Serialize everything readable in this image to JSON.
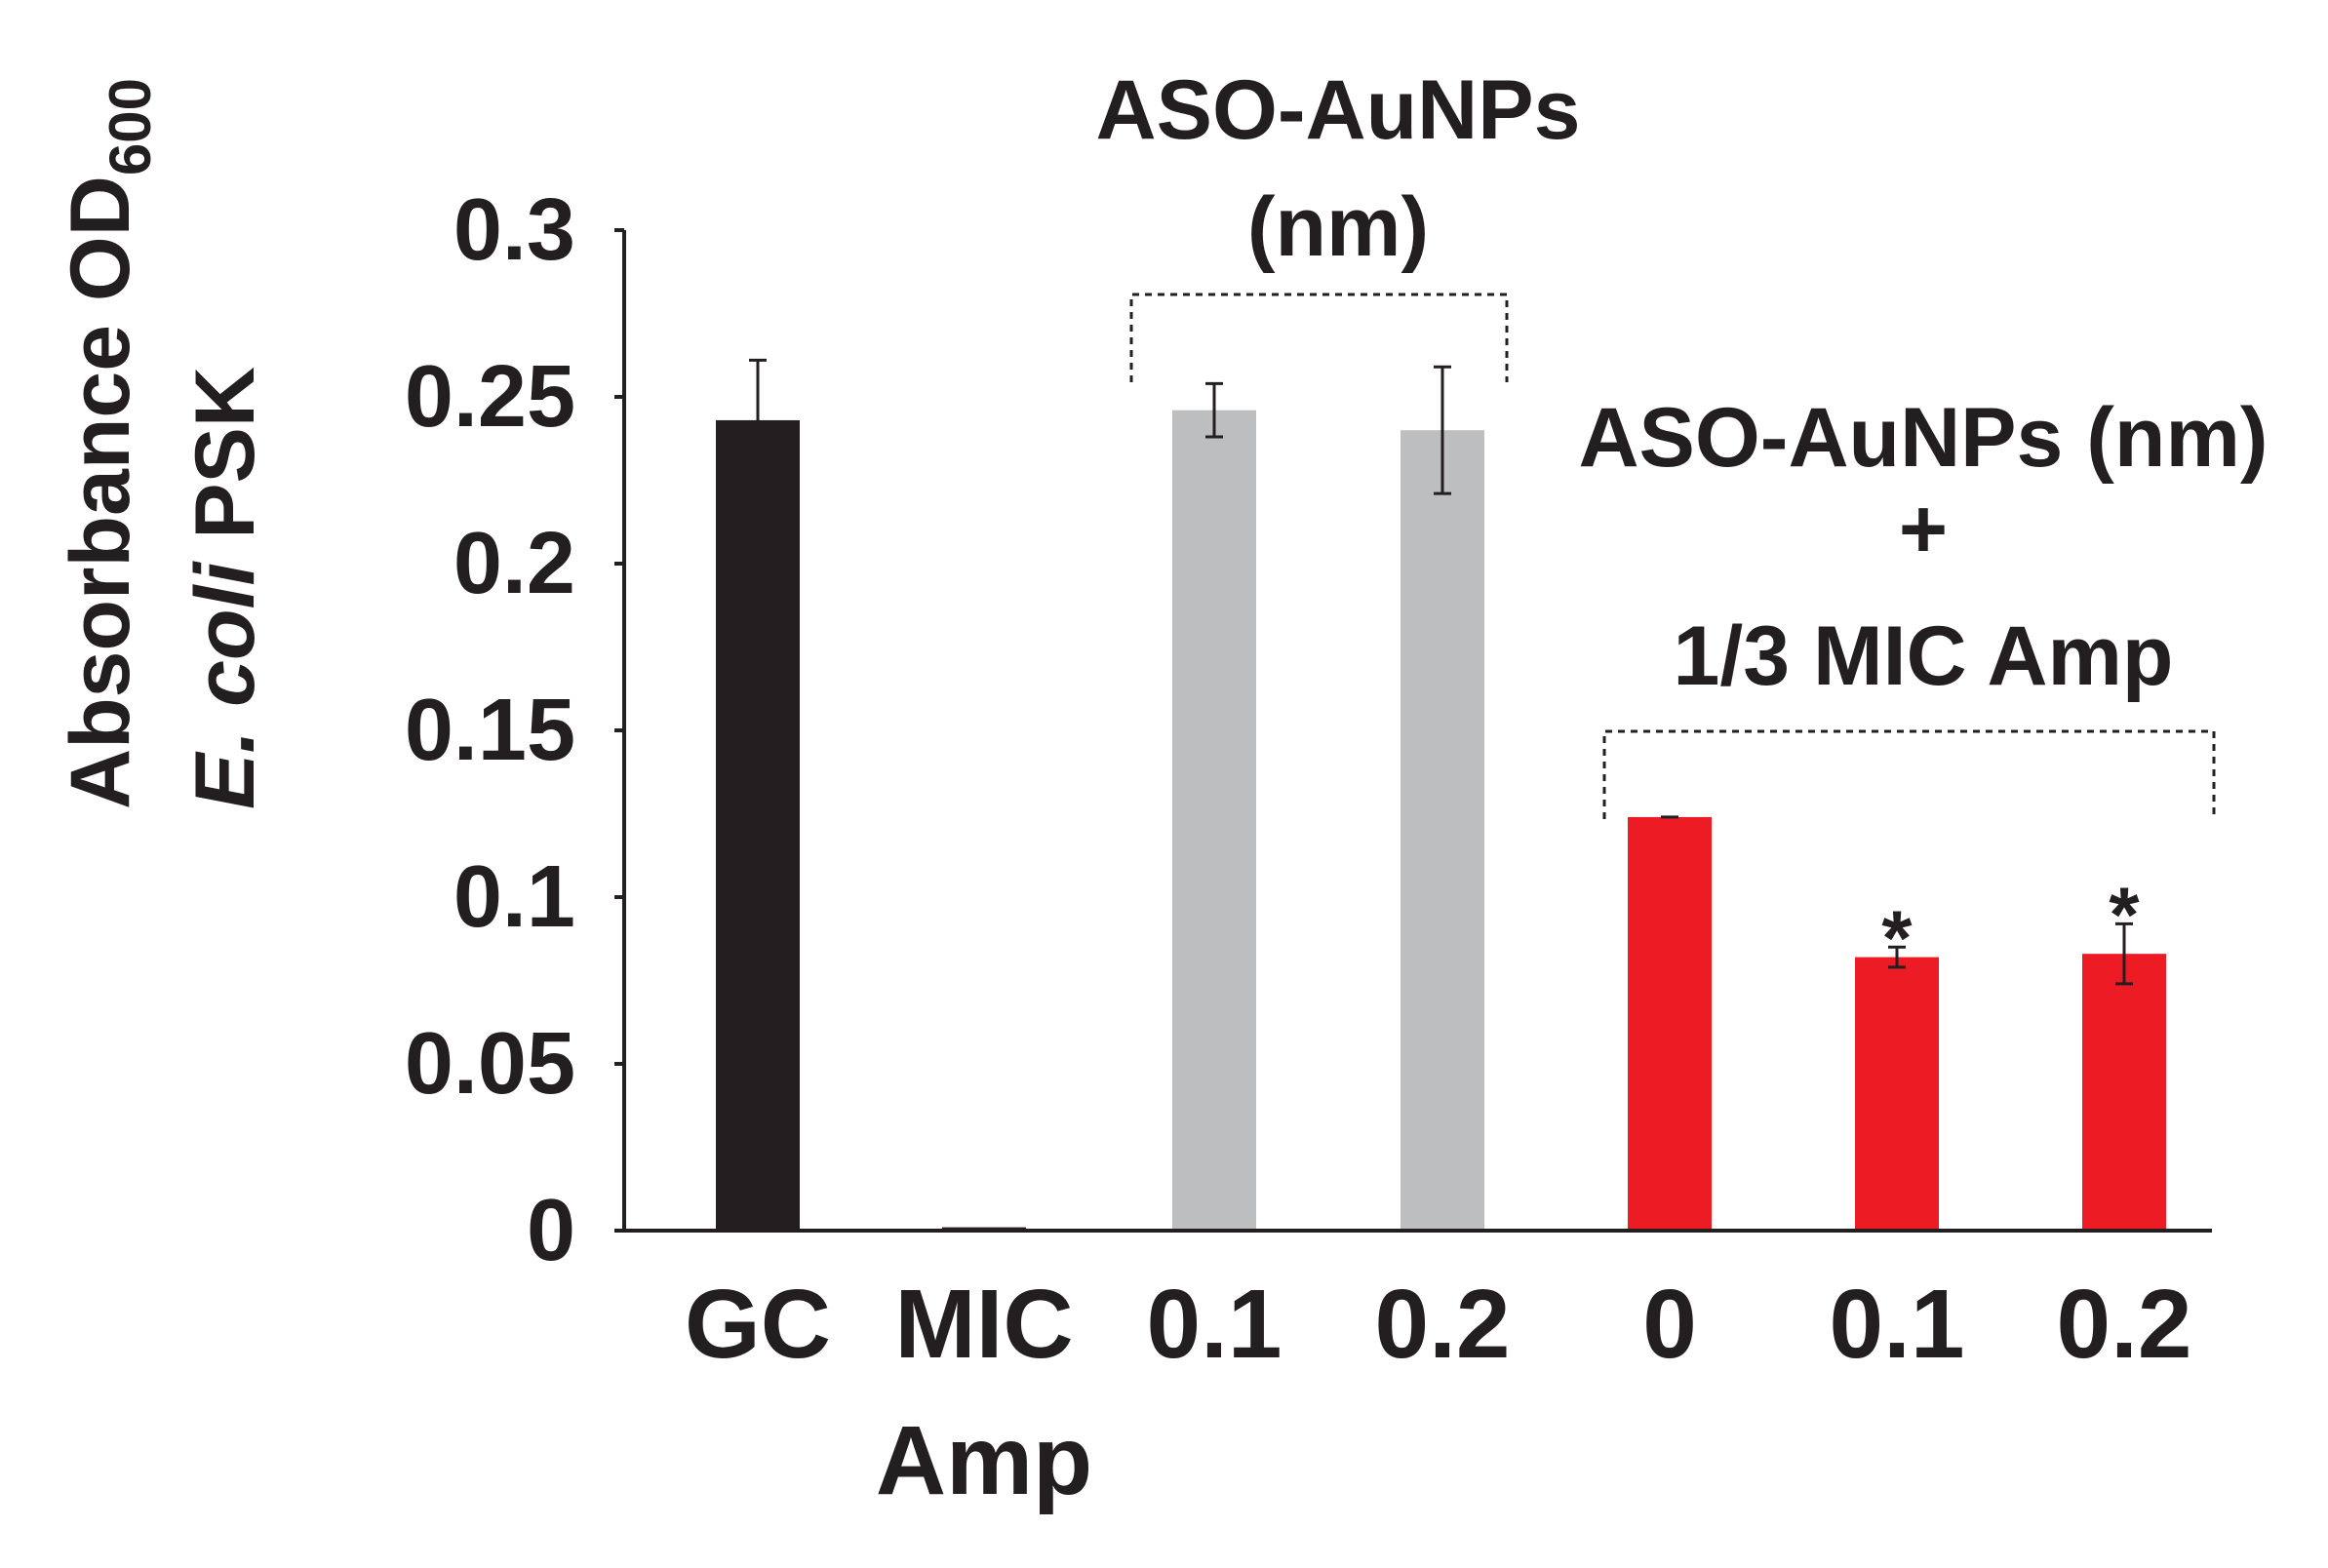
{
  "chart_data": {
    "type": "bar",
    "categories": [
      "GC",
      "MIC",
      "0.1",
      "0.2",
      "0",
      "0.1",
      "0.2"
    ],
    "category_sublabels": [
      "",
      "Amp",
      "",
      "",
      "",
      "",
      ""
    ],
    "values": [
      0.243,
      0.001,
      0.246,
      0.24,
      0.124,
      0.082,
      0.083
    ],
    "errors": [
      0.018,
      0.0,
      0.008,
      0.019,
      0.0,
      0.003,
      0.009
    ],
    "significance": [
      "",
      "",
      "",
      "",
      "",
      "*",
      "*"
    ],
    "bar_colors": [
      "#231f20",
      "#231f20",
      "#bcbec0",
      "#bcbec0",
      "#ed1c24",
      "#ed1c24",
      "#ed1c24"
    ],
    "ylabel_line1": "Absorbance OD",
    "ylabel_subscript": "600",
    "ylabel_line2_italic": "E. coli",
    "ylabel_line2_rest": " PSK",
    "ylim": [
      0,
      0.3
    ],
    "yticks": [
      0,
      0.05,
      0.1,
      0.15,
      0.2,
      0.25,
      0.3
    ],
    "ytick_labels": [
      "0",
      "0.05",
      "0.1",
      "0.15",
      "0.2",
      "0.25",
      "0.3"
    ],
    "group_annotations": [
      {
        "lines": [
          "ASO-AuNPs",
          "(nm)"
        ],
        "bars": [
          2,
          3
        ]
      },
      {
        "lines": [
          "ASO-AuNPs (nm)",
          "+",
          "1/3 MIC Amp"
        ],
        "bars": [
          4,
          5,
          6
        ]
      }
    ]
  }
}
